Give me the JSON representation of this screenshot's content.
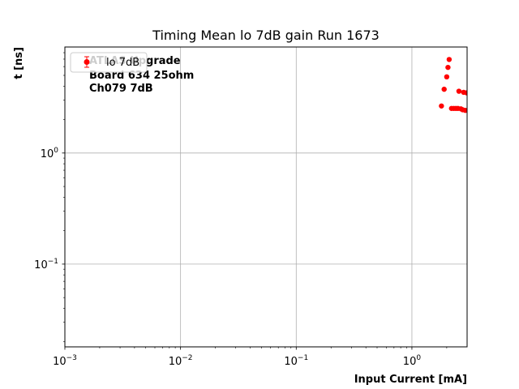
{
  "chart_data": {
    "type": "scatter",
    "title": "Timing Mean lo 7dB gain Run 1673",
    "xlabel": "Input Current [mA]",
    "ylabel": "t [ns]",
    "xscale": "log",
    "yscale": "log",
    "xlim": [
      0.001,
      3.0
    ],
    "ylim": [
      0.018,
      9.0
    ],
    "grid": true,
    "legend_location": "upper left",
    "x_ticks": [
      {
        "base": "10",
        "exp": "−3",
        "value": 0.001
      },
      {
        "base": "10",
        "exp": "−2",
        "value": 0.01
      },
      {
        "base": "10",
        "exp": "−1",
        "value": 0.1
      },
      {
        "base": "10",
        "exp": "0",
        "value": 1
      }
    ],
    "y_ticks": [
      {
        "base": "10",
        "exp": "−1",
        "value": 0.1
      },
      {
        "base": "10",
        "exp": "0",
        "value": 1
      }
    ],
    "annotations": [
      {
        "text": "ATLAS Upgrade"
      },
      {
        "text": "Board 634 25ohm"
      },
      {
        "text": "Ch079 7dB"
      }
    ],
    "series": [
      {
        "name": "lo 7dB",
        "color": "#ff0000",
        "marker": "circle-errorbar",
        "points": [
          {
            "x": 1.8,
            "y": 2.65
          },
          {
            "x": 1.9,
            "y": 3.75
          },
          {
            "x": 2.0,
            "y": 4.85
          },
          {
            "x": 2.05,
            "y": 5.9
          },
          {
            "x": 2.1,
            "y": 6.95
          },
          {
            "x": 2.2,
            "y": 2.52
          },
          {
            "x": 2.3,
            "y": 2.52
          },
          {
            "x": 2.4,
            "y": 2.52
          },
          {
            "x": 2.5,
            "y": 2.52
          },
          {
            "x": 2.55,
            "y": 3.6
          },
          {
            "x": 2.65,
            "y": 2.5
          },
          {
            "x": 2.75,
            "y": 2.45
          },
          {
            "x": 2.8,
            "y": 3.52
          },
          {
            "x": 2.9,
            "y": 2.42
          },
          {
            "x": 2.98,
            "y": 3.48
          }
        ]
      }
    ]
  }
}
